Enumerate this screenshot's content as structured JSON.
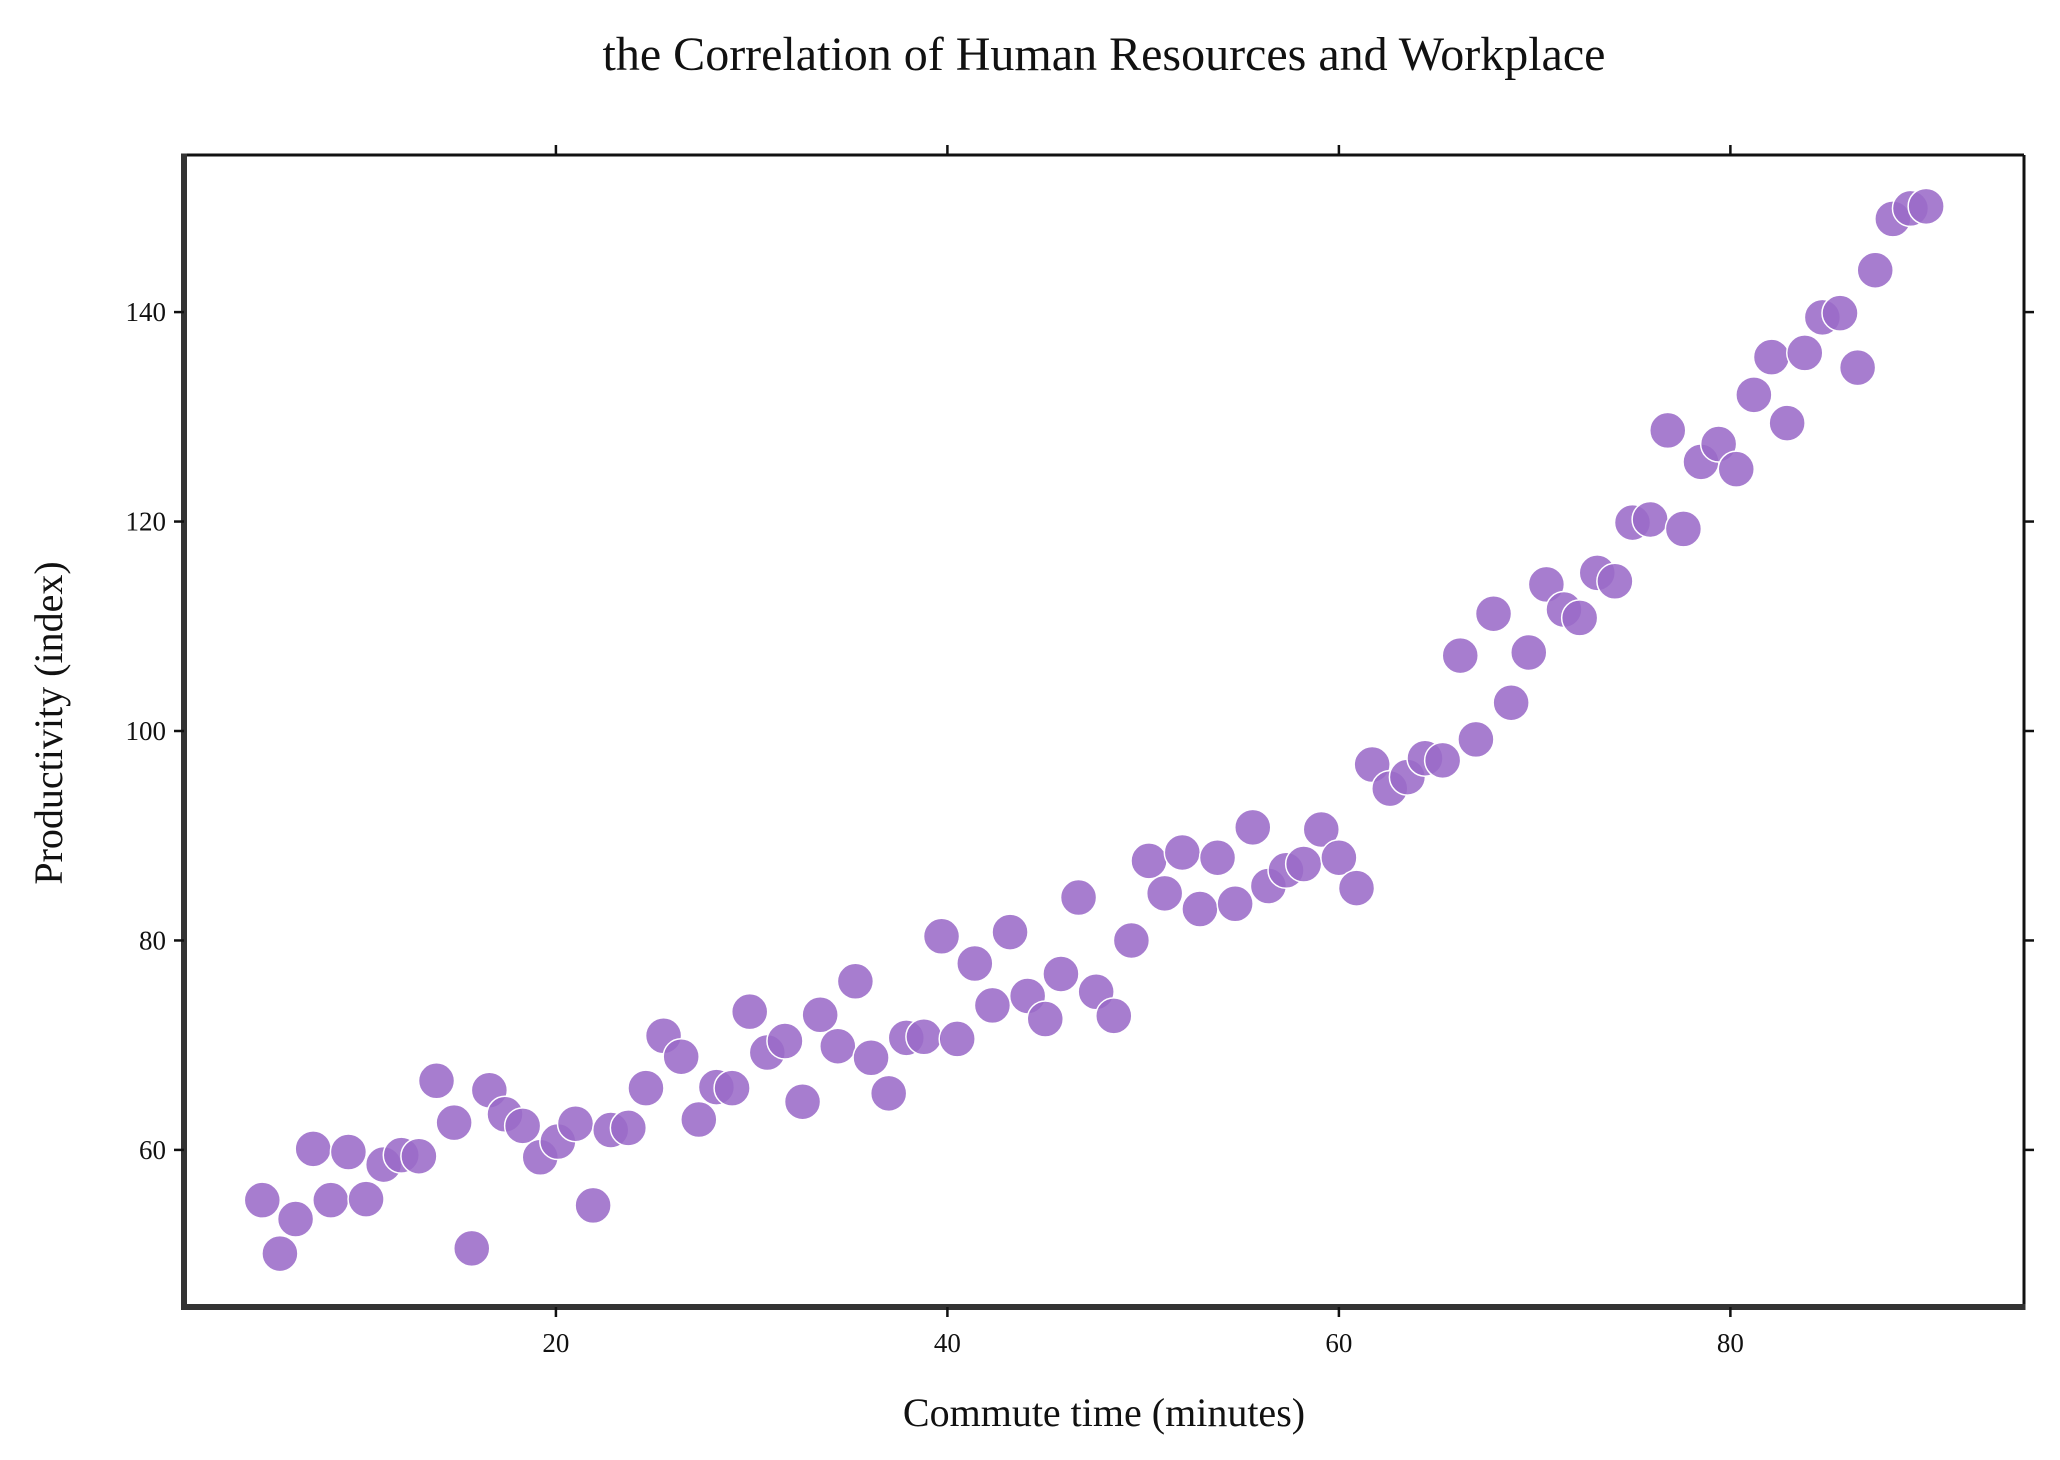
{
  "chart_data": {
    "type": "scatter",
    "title": "the Correlation of Human Resources and Workplace",
    "xlabel": "Commute time (minutes)",
    "ylabel": "Productivity (index)",
    "xlim": [
      1,
      95
    ],
    "ylim": [
      45,
      155
    ],
    "xticks": [
      20,
      40,
      60,
      80
    ],
    "yticks": [
      60,
      80,
      100,
      120,
      140
    ],
    "grid": false,
    "point_color": "#9b6bc8",
    "point_edge_color": "#ffffff",
    "points": [
      {
        "x": 5.0,
        "y": 55.2
      },
      {
        "x": 5.9,
        "y": 50.1
      },
      {
        "x": 6.7,
        "y": 53.4
      },
      {
        "x": 7.6,
        "y": 60.1
      },
      {
        "x": 8.5,
        "y": 55.2
      },
      {
        "x": 9.4,
        "y": 59.8
      },
      {
        "x": 10.3,
        "y": 55.3
      },
      {
        "x": 11.2,
        "y": 58.6
      },
      {
        "x": 12.1,
        "y": 59.5
      },
      {
        "x": 13.0,
        "y": 59.4
      },
      {
        "x": 13.9,
        "y": 66.6
      },
      {
        "x": 14.8,
        "y": 62.6
      },
      {
        "x": 15.7,
        "y": 50.6
      },
      {
        "x": 16.6,
        "y": 65.7
      },
      {
        "x": 17.4,
        "y": 63.4
      },
      {
        "x": 18.3,
        "y": 62.3
      },
      {
        "x": 19.2,
        "y": 59.3
      },
      {
        "x": 20.1,
        "y": 60.8
      },
      {
        "x": 21.0,
        "y": 62.5
      },
      {
        "x": 21.9,
        "y": 54.7
      },
      {
        "x": 22.8,
        "y": 61.9
      },
      {
        "x": 23.7,
        "y": 62.1
      },
      {
        "x": 24.6,
        "y": 65.9
      },
      {
        "x": 25.5,
        "y": 70.9
      },
      {
        "x": 26.4,
        "y": 68.9
      },
      {
        "x": 27.3,
        "y": 62.9
      },
      {
        "x": 28.2,
        "y": 66.0
      },
      {
        "x": 29.0,
        "y": 65.9
      },
      {
        "x": 29.9,
        "y": 73.2
      },
      {
        "x": 30.8,
        "y": 69.3
      },
      {
        "x": 31.7,
        "y": 70.4
      },
      {
        "x": 32.6,
        "y": 64.6
      },
      {
        "x": 33.5,
        "y": 72.9
      },
      {
        "x": 34.4,
        "y": 69.9
      },
      {
        "x": 35.3,
        "y": 76.1
      },
      {
        "x": 36.1,
        "y": 68.8
      },
      {
        "x": 37.0,
        "y": 65.4
      },
      {
        "x": 37.9,
        "y": 70.7
      },
      {
        "x": 38.8,
        "y": 70.8
      },
      {
        "x": 39.7,
        "y": 80.4
      },
      {
        "x": 40.5,
        "y": 70.6
      },
      {
        "x": 41.4,
        "y": 77.8
      },
      {
        "x": 42.3,
        "y": 73.8
      },
      {
        "x": 43.2,
        "y": 80.8
      },
      {
        "x": 44.1,
        "y": 74.7
      },
      {
        "x": 45.0,
        "y": 72.5
      },
      {
        "x": 45.8,
        "y": 76.8
      },
      {
        "x": 46.7,
        "y": 84.1
      },
      {
        "x": 47.6,
        "y": 75.1
      },
      {
        "x": 48.5,
        "y": 72.8
      },
      {
        "x": 49.4,
        "y": 80.0
      },
      {
        "x": 50.3,
        "y": 87.6
      },
      {
        "x": 51.1,
        "y": 84.5
      },
      {
        "x": 52.0,
        "y": 88.4
      },
      {
        "x": 52.9,
        "y": 83.0
      },
      {
        "x": 53.8,
        "y": 87.9
      },
      {
        "x": 54.7,
        "y": 83.5
      },
      {
        "x": 55.6,
        "y": 90.8
      },
      {
        "x": 56.4,
        "y": 85.2
      },
      {
        "x": 57.3,
        "y": 86.7
      },
      {
        "x": 58.2,
        "y": 87.3
      },
      {
        "x": 59.1,
        "y": 90.6
      },
      {
        "x": 60.0,
        "y": 87.9
      },
      {
        "x": 60.9,
        "y": 85.0
      },
      {
        "x": 61.7,
        "y": 96.8
      },
      {
        "x": 62.6,
        "y": 94.5
      },
      {
        "x": 63.5,
        "y": 95.6
      },
      {
        "x": 64.4,
        "y": 97.4
      },
      {
        "x": 65.3,
        "y": 97.2
      },
      {
        "x": 66.2,
        "y": 107.2
      },
      {
        "x": 67.0,
        "y": 99.2
      },
      {
        "x": 67.9,
        "y": 111.2
      },
      {
        "x": 68.8,
        "y": 102.7
      },
      {
        "x": 69.7,
        "y": 107.5
      },
      {
        "x": 70.6,
        "y": 114.0
      },
      {
        "x": 71.5,
        "y": 111.6
      },
      {
        "x": 72.3,
        "y": 110.8
      },
      {
        "x": 73.2,
        "y": 115.1
      },
      {
        "x": 74.1,
        "y": 114.3
      },
      {
        "x": 75.0,
        "y": 119.9
      },
      {
        "x": 75.9,
        "y": 120.2
      },
      {
        "x": 76.8,
        "y": 128.7
      },
      {
        "x": 77.6,
        "y": 119.3
      },
      {
        "x": 78.5,
        "y": 125.7
      },
      {
        "x": 79.4,
        "y": 127.4
      },
      {
        "x": 80.3,
        "y": 125.0
      },
      {
        "x": 81.2,
        "y": 132.1
      },
      {
        "x": 82.1,
        "y": 135.7
      },
      {
        "x": 82.9,
        "y": 129.4
      },
      {
        "x": 83.8,
        "y": 136.1
      },
      {
        "x": 84.7,
        "y": 139.5
      },
      {
        "x": 85.6,
        "y": 139.9
      },
      {
        "x": 86.5,
        "y": 134.7
      },
      {
        "x": 87.4,
        "y": 144.0
      },
      {
        "x": 88.3,
        "y": 148.9
      },
      {
        "x": 89.2,
        "y": 149.9
      },
      {
        "x": 90.0,
        "y": 150.1
      }
    ]
  }
}
